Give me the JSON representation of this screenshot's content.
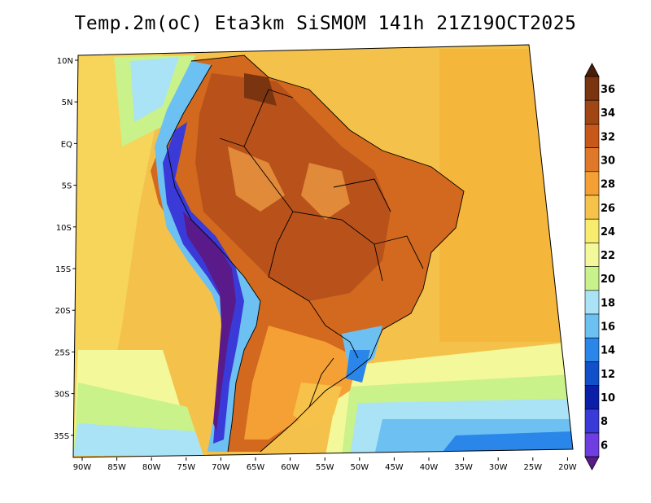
{
  "title": "Temp.2m(oC) Eta3km SiSMOM 141h 21Z19OCT2025",
  "map": {
    "lat_ticks": [
      "10N",
      "5N",
      "EQ",
      "5S",
      "10S",
      "15S",
      "20S",
      "25S",
      "30S",
      "35S"
    ],
    "lon_ticks": [
      "90W",
      "85W",
      "80W",
      "75W",
      "70W",
      "65W",
      "60W",
      "55W",
      "50W",
      "45W",
      "40W",
      "35W",
      "30W",
      "25W",
      "20W"
    ],
    "variable": "2 m air temperature",
    "unit": "oC",
    "lon_range": [
      -90,
      -20
    ],
    "lat_range": [
      -38,
      12
    ]
  },
  "colorbar": {
    "labels": [
      "36",
      "34",
      "32",
      "30",
      "28",
      "26",
      "24",
      "22",
      "20",
      "18",
      "16",
      "14",
      "12",
      "10",
      "8",
      "6"
    ],
    "colors": [
      "#4a1f0a",
      "#7a3410",
      "#a04514",
      "#c8581a",
      "#e0782a",
      "#f4a035",
      "#f7c24a",
      "#f7ec6e",
      "#f3f99a",
      "#c9f28a",
      "#a9e3f5",
      "#6cc0f2",
      "#2a86e8",
      "#1050c8",
      "#0a1ea8",
      "#3a3ad8",
      "#6f3ee0",
      "#a032c8",
      "#5a1a8a"
    ]
  },
  "regions": {
    "ocean_south": "#7ec8f0",
    "ocean_north": "#f6d255",
    "land_hot": "#c65a1c",
    "andes": "#5a2aa0"
  }
}
